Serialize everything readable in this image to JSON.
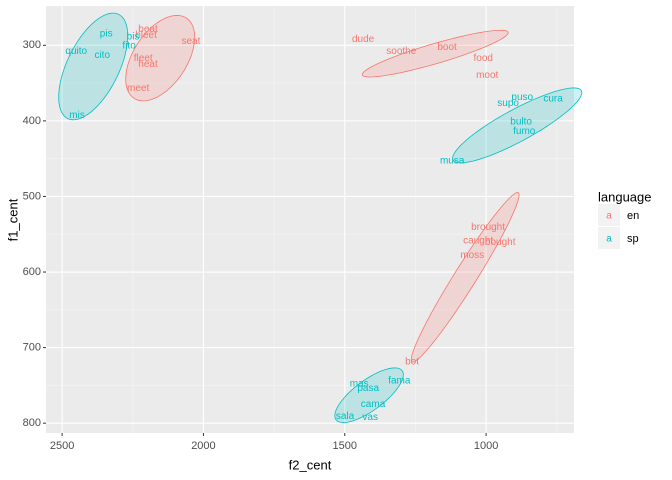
{
  "chart_data": {
    "type": "text_scatter",
    "xlabel": "f2_cent",
    "ylabel": "f1_cent",
    "xlim": [
      2557,
      689
    ],
    "ylim": [
      248,
      813
    ],
    "xticks": [
      2500,
      2000,
      1500,
      1000
    ],
    "yticks": [
      300,
      400,
      500,
      600,
      700,
      800
    ],
    "xminor": [
      2250,
      1750,
      1250,
      750
    ],
    "yminor": [
      350,
      450,
      550,
      650,
      750
    ],
    "grid": true,
    "legend_title": "language",
    "legend_key": "a",
    "legend_position": "right",
    "series": [
      {
        "name": "en",
        "color": "#F8766D",
        "labels": [
          "beat",
          "bleet",
          "seat",
          "fleet",
          "heat",
          "meet",
          "dude",
          "soothe",
          "boot",
          "food",
          "moot",
          "brought",
          "caught",
          "bought",
          "moss",
          "bot"
        ],
        "x": [
          2196,
          2203,
          2044,
          2213,
          2196,
          2231,
          1435,
          1300,
          1138,
          1010,
          996,
          993,
          1028,
          950,
          1049,
          1262
        ],
        "values": [
          279,
          287,
          295,
          317,
          325,
          357,
          292,
          308,
          303,
          317,
          340,
          541,
          559,
          561,
          578,
          719
        ],
        "ellipses": [
          {
            "center": [
              2153,
              317
            ],
            "u": [
              -93,
              -53
            ],
            "v": [
              -79,
              19.7
            ]
          },
          {
            "center": [
              1180,
              311
            ],
            "u": [
              -258,
              -28.2
            ],
            "v": [
              -9.9,
              12.7
            ]
          },
          {
            "center": [
              1074,
              607
            ],
            "u": [
              -188,
              -112
            ],
            "v": [
              -33,
              7.7
            ]
          }
        ]
      },
      {
        "name": "sp",
        "color": "#00BFC4",
        "labels": [
          "pis",
          "bis",
          "fito",
          "quito",
          "cito",
          "mis",
          "puso",
          "cura",
          "supo",
          "bulto",
          "fumo",
          "musa",
          "mas",
          "fama",
          "pasa",
          "cama",
          "sala",
          "vas"
        ],
        "x": [
          2344,
          2249,
          2263,
          2450,
          2358,
          2447,
          872,
          763,
          922,
          876,
          865,
          1120,
          1449,
          1307,
          1417,
          1400,
          1499,
          1410
        ],
        "values": [
          285,
          289,
          301,
          308,
          313,
          393,
          369,
          371,
          377,
          401,
          414,
          453,
          748,
          744,
          754,
          775,
          791,
          792
        ],
        "ellipses": [
          {
            "center": [
              2390,
              328
            ],
            "u": [
              -90,
              -69
            ],
            "v": [
              -82.6,
              15.1
            ]
          },
          {
            "center": [
              890,
              406
            ],
            "u": [
              -227,
              -46
            ],
            "v": [
              -27,
              18.6
            ]
          },
          {
            "center": [
              1414,
              763
            ],
            "u": [
              -117,
              -32.5
            ],
            "v": [
              -32,
              15.9
            ]
          }
        ]
      }
    ]
  }
}
